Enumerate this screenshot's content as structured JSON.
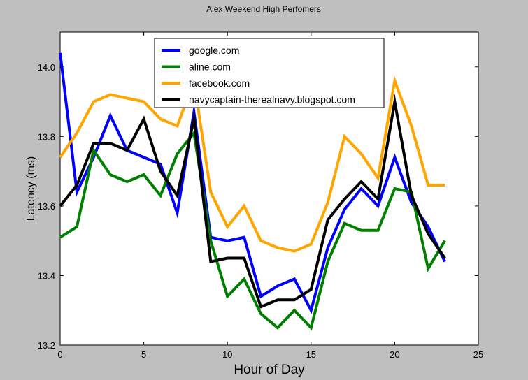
{
  "chart_data": {
    "type": "line",
    "title": "Alex Weekend High Perfomers",
    "xlabel": "Hour of Day",
    "ylabel": "Latency (ms)",
    "xlim": [
      0,
      25
    ],
    "ylim": [
      13.2,
      14.1
    ],
    "xticks": [
      0,
      5,
      10,
      15,
      20,
      25
    ],
    "yticks": [
      13.2,
      13.4,
      13.6,
      13.8,
      14.0
    ],
    "ytick_labels": [
      "13.2",
      "13.4",
      "13.6",
      "13.8",
      "14.0"
    ],
    "grid": false,
    "legend_position": "top-center",
    "x": [
      0,
      1,
      2,
      3,
      4,
      5,
      6,
      7,
      8,
      9,
      10,
      11,
      12,
      13,
      14,
      15,
      16,
      17,
      18,
      19,
      20,
      21,
      22,
      23
    ],
    "series": [
      {
        "name": "google.com",
        "color": "#0000ff",
        "values": [
          14.04,
          13.64,
          13.74,
          13.86,
          13.76,
          13.74,
          13.72,
          13.58,
          13.87,
          13.51,
          13.5,
          13.51,
          13.34,
          13.37,
          13.39,
          13.3,
          13.48,
          13.59,
          13.65,
          13.6,
          13.74,
          13.61,
          13.54,
          13.44
        ]
      },
      {
        "name": "aline.com",
        "color": "#008000",
        "values": [
          13.51,
          13.54,
          13.76,
          13.69,
          13.67,
          13.69,
          13.63,
          13.75,
          13.81,
          13.5,
          13.34,
          13.39,
          13.29,
          13.25,
          13.3,
          13.25,
          13.44,
          13.55,
          13.53,
          13.53,
          13.65,
          13.64,
          13.42,
          13.5
        ]
      },
      {
        "name": "facebook.com",
        "color": "#ffa500",
        "values": [
          13.74,
          13.81,
          13.9,
          13.92,
          13.91,
          13.9,
          13.85,
          13.83,
          13.96,
          13.64,
          13.54,
          13.6,
          13.5,
          13.48,
          13.47,
          13.49,
          13.61,
          13.8,
          13.75,
          13.68,
          13.96,
          13.83,
          13.66,
          13.66
        ]
      },
      {
        "name": "navycaptain-therealnavy.blogspot.com",
        "color": "#000000",
        "values": [
          13.6,
          13.66,
          13.78,
          13.78,
          13.76,
          13.85,
          13.7,
          13.63,
          13.85,
          13.44,
          13.45,
          13.45,
          13.31,
          13.33,
          13.33,
          13.36,
          13.56,
          13.62,
          13.67,
          13.62,
          13.9,
          13.63,
          13.52,
          13.45
        ]
      }
    ]
  }
}
